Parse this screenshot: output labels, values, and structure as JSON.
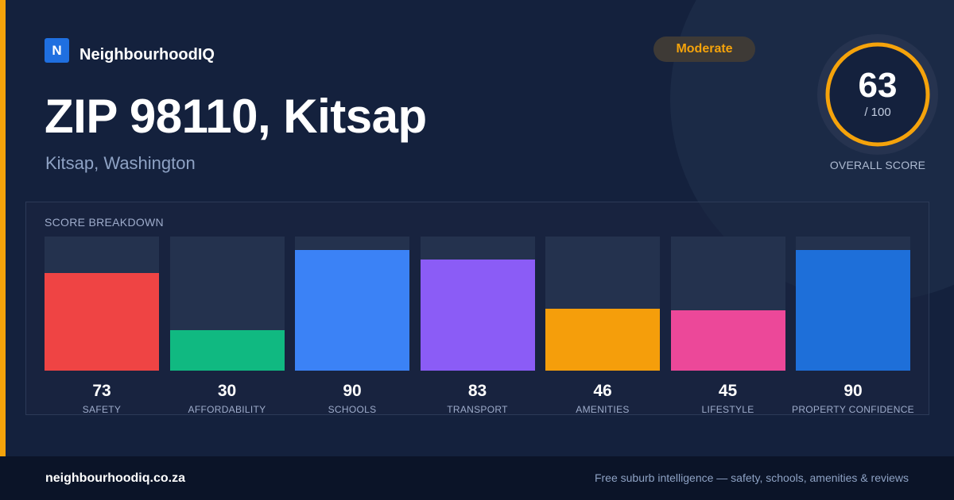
{
  "brand": {
    "logo_letter": "N",
    "name": "NeighbourhoodIQ"
  },
  "header": {
    "title": "ZIP 98110, Kitsap",
    "subtitle": "Kitsap, Washington",
    "rating_badge": "Moderate"
  },
  "overall": {
    "score": "63",
    "max": "/ 100",
    "label": "OVERALL SCORE",
    "ring_color": "#f5a30b"
  },
  "colors": {
    "accent": "#f5a30b",
    "background": "#14213d"
  },
  "breakdown": {
    "title": "SCORE BREAKDOWN"
  },
  "chart_data": {
    "type": "bar",
    "title": "SCORE BREAKDOWN",
    "categories": [
      "SAFETY",
      "AFFORDABILITY",
      "SCHOOLS",
      "TRANSPORT",
      "AMENITIES",
      "LIFESTYLE",
      "PROPERTY CONFIDENCE"
    ],
    "values": [
      73,
      30,
      90,
      83,
      46,
      45,
      90
    ],
    "colors": [
      "#ef4444",
      "#10b981",
      "#3b82f6",
      "#8b5cf6",
      "#f59e0b",
      "#ec4899",
      "#1e6fd9"
    ],
    "ylim": [
      0,
      100
    ],
    "grid": false
  },
  "footer": {
    "site": "neighbourhoodiq.co.za",
    "tagline": "Free suburb intelligence — safety, schools, amenities & reviews"
  }
}
